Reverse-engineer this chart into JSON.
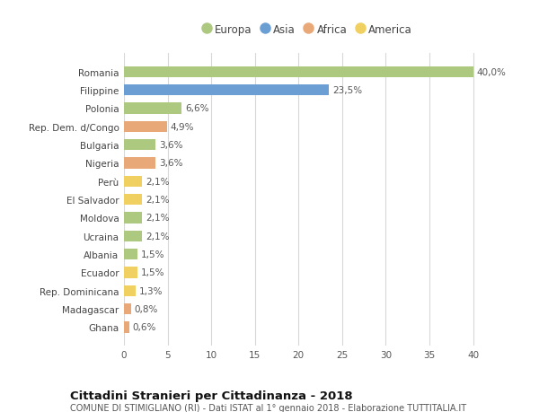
{
  "categories": [
    "Romania",
    "Filippine",
    "Polonia",
    "Rep. Dem. d/Congo",
    "Bulgaria",
    "Nigeria",
    "Perù",
    "El Salvador",
    "Moldova",
    "Ucraina",
    "Albania",
    "Ecuador",
    "Rep. Dominicana",
    "Madagascar",
    "Ghana"
  ],
  "values": [
    40.0,
    23.5,
    6.6,
    4.9,
    3.6,
    3.6,
    2.1,
    2.1,
    2.1,
    2.1,
    1.5,
    1.5,
    1.3,
    0.8,
    0.6
  ],
  "labels": [
    "40,0%",
    "23,5%",
    "6,6%",
    "4,9%",
    "3,6%",
    "3,6%",
    "2,1%",
    "2,1%",
    "2,1%",
    "2,1%",
    "1,5%",
    "1,5%",
    "1,3%",
    "0,8%",
    "0,6%"
  ],
  "continents": [
    "Europa",
    "Asia",
    "Europa",
    "Africa",
    "Europa",
    "Africa",
    "America",
    "America",
    "Europa",
    "Europa",
    "Europa",
    "America",
    "America",
    "Africa",
    "Africa"
  ],
  "colors": {
    "Europa": "#adc980",
    "Asia": "#6b9fd4",
    "Africa": "#e8a878",
    "America": "#f0d060"
  },
  "legend_labels": [
    "Europa",
    "Asia",
    "Africa",
    "America"
  ],
  "xlim": [
    0,
    42
  ],
  "xticks": [
    0,
    5,
    10,
    15,
    20,
    25,
    30,
    35,
    40
  ],
  "title_bold": "Cittadini Stranieri per Cittadinanza - 2018",
  "subtitle": "COMUNE DI STIMIGLIANO (RI) - Dati ISTAT al 1° gennaio 2018 - Elaborazione TUTTITALIA.IT",
  "background_color": "#ffffff",
  "grid_color": "#d8d8d8",
  "bar_height": 0.6,
  "label_fontsize": 7.5,
  "tick_fontsize": 7.5,
  "legend_fontsize": 8.5,
  "title_fontsize": 9.5,
  "subtitle_fontsize": 7.0
}
